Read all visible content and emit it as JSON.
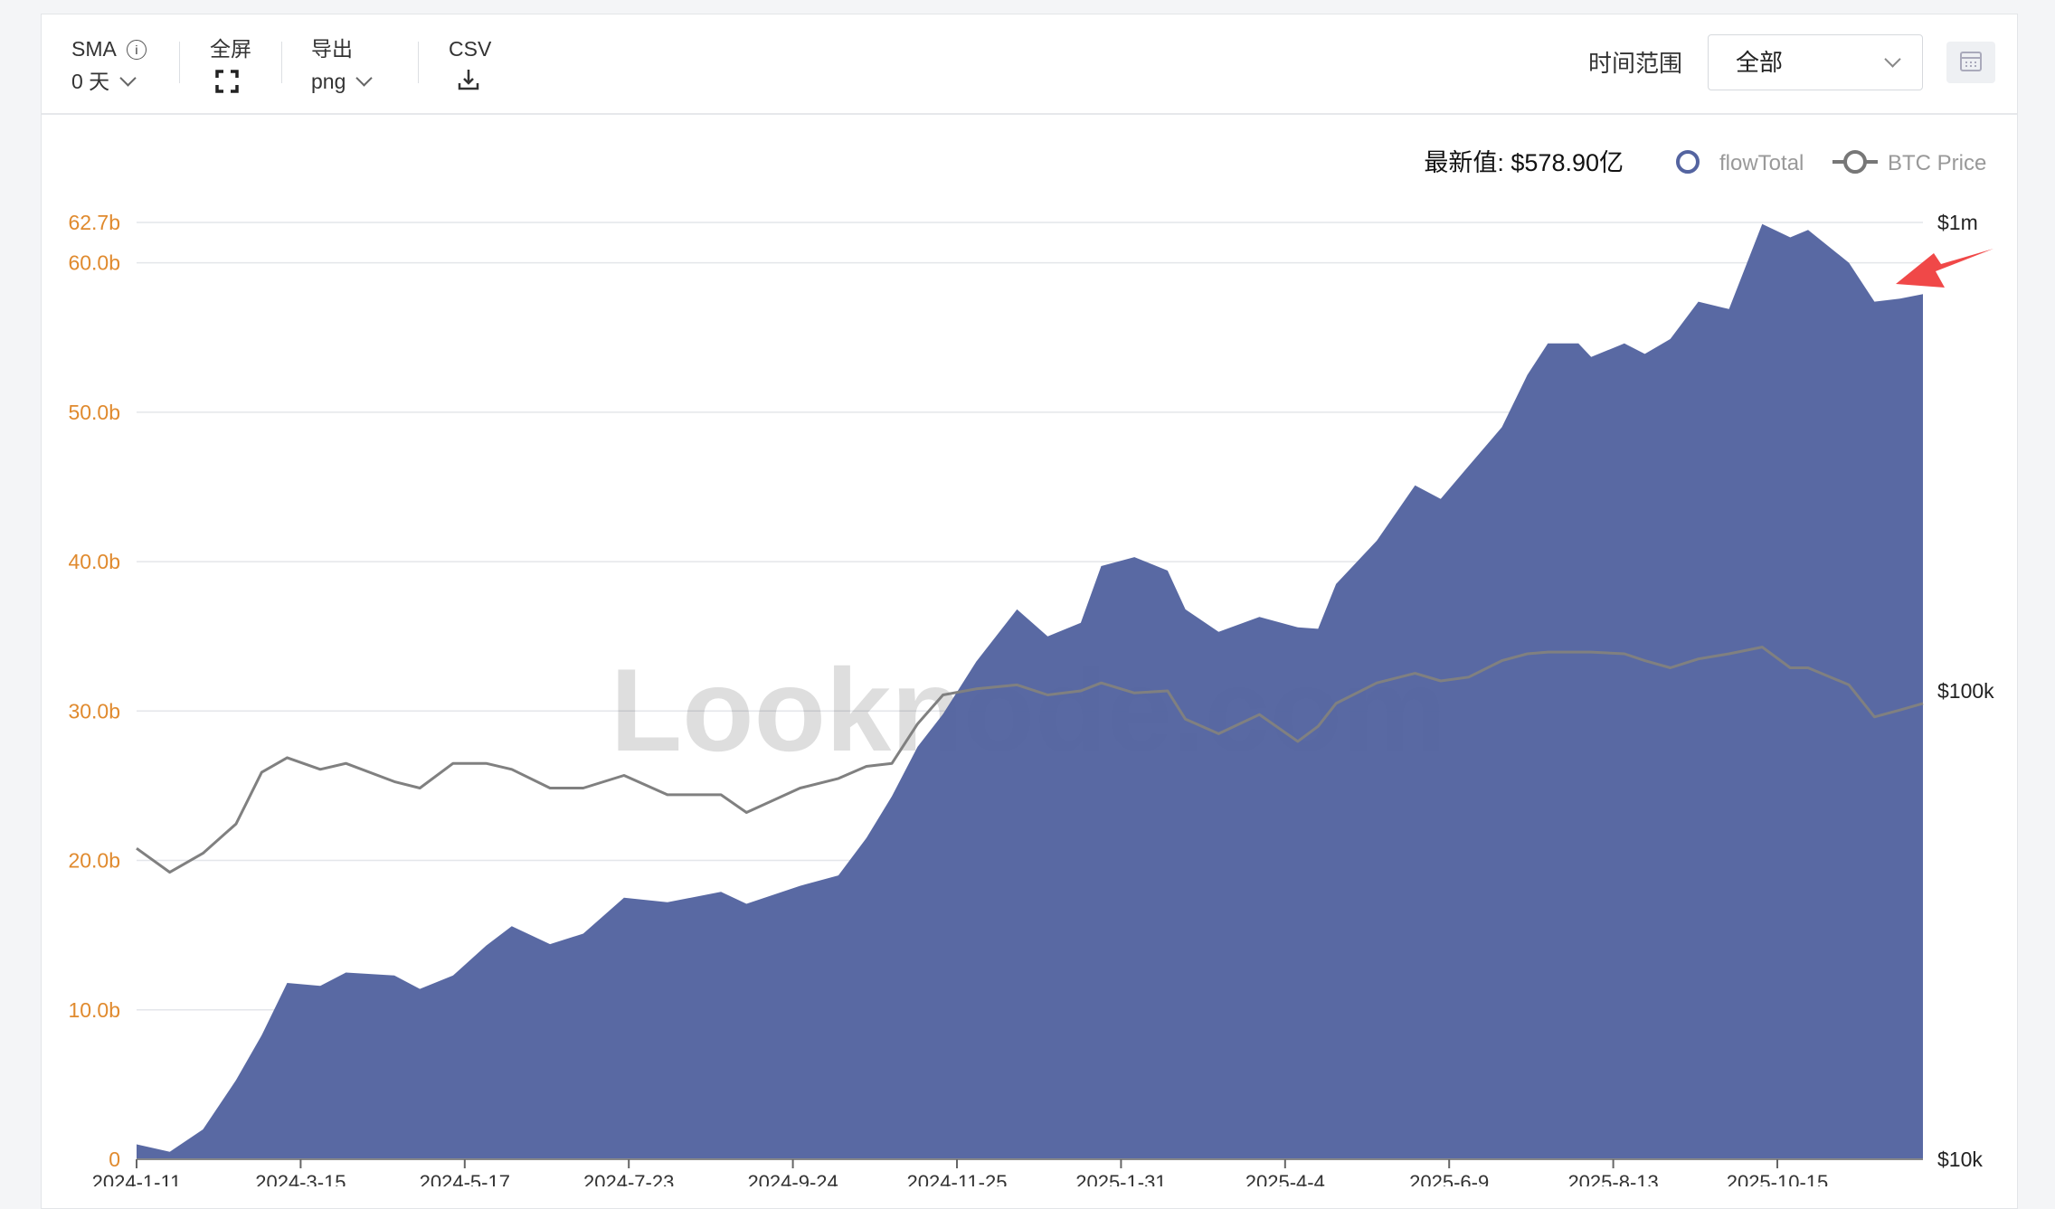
{
  "toolbar": {
    "sma_label": "SMA",
    "sma_value": "0 天",
    "fullscreen_label": "全屏",
    "export_label": "导出",
    "export_value": "png",
    "csv_label": "CSV",
    "time_range_label": "时间范围",
    "time_range_value": "全部"
  },
  "watermark": "Looknode.com",
  "colors": {
    "flow": "#5464a0",
    "btc": "#808080",
    "left_axis": "#e08a2e",
    "arrow": "#f04848"
  },
  "chart_data": {
    "type": "area",
    "latest_value_text": "最新值: $578.90亿",
    "legend": [
      "flowTotal",
      "BTC Price"
    ],
    "legend_placement": "top-right",
    "grid": true,
    "x_ticks": [
      "2024-1-11",
      "2024-3-15",
      "2024-5-17",
      "2024-7-23",
      "2024-9-24",
      "2024-11-25",
      "2025-1-31",
      "2025-4-4",
      "2025-6-9",
      "2025-8-13",
      "2025-10-15"
    ],
    "y_left": {
      "ticks": [
        0,
        10,
        20,
        30,
        40,
        50,
        60,
        62.7
      ],
      "labels": [
        "0",
        "10.0b",
        "20.0b",
        "30.0b",
        "40.0b",
        "50.0b",
        "60.0b",
        "62.7b"
      ],
      "range": [
        0,
        62.7
      ],
      "unit": "billion USD"
    },
    "y_right": {
      "scale": "log",
      "ticks": [
        10000,
        100000,
        1000000
      ],
      "labels": [
        "$10k",
        "$100k",
        "$1m"
      ],
      "range": [
        10000,
        1000000
      ]
    },
    "x": [
      "2024-01-11",
      "2024-01-24",
      "2024-02-06",
      "2024-02-19",
      "2024-02-29",
      "2024-03-10",
      "2024-03-23",
      "2024-04-02",
      "2024-04-21",
      "2024-05-01",
      "2024-05-14",
      "2024-05-27",
      "2024-06-06",
      "2024-06-21",
      "2024-07-04",
      "2024-07-20",
      "2024-08-06",
      "2024-08-27",
      "2024-09-06",
      "2024-09-27",
      "2024-10-12",
      "2024-10-23",
      "2024-11-02",
      "2024-11-12",
      "2024-11-22",
      "2024-12-05",
      "2024-12-21",
      "2025-01-02",
      "2025-01-15",
      "2025-01-23",
      "2025-02-05",
      "2025-02-18",
      "2025-02-25",
      "2025-03-10",
      "2025-03-26",
      "2025-04-10",
      "2025-04-18",
      "2025-04-25",
      "2025-05-11",
      "2025-05-26",
      "2025-06-05",
      "2025-06-16",
      "2025-06-29",
      "2025-07-09",
      "2025-07-17",
      "2025-07-29",
      "2025-08-03",
      "2025-08-16",
      "2025-08-24",
      "2025-09-03",
      "2025-09-14",
      "2025-09-26",
      "2025-10-09",
      "2025-10-20",
      "2025-10-27",
      "2025-11-12",
      "2025-11-22",
      "2025-12-02",
      "2025-12-11"
    ],
    "series": [
      {
        "name": "flowTotal",
        "axis": "left",
        "values": [
          1.0,
          0.5,
          2.0,
          5.3,
          8.3,
          11.8,
          11.6,
          12.5,
          12.3,
          11.4,
          12.3,
          14.3,
          15.6,
          14.4,
          15.1,
          17.5,
          17.2,
          17.9,
          17.1,
          18.3,
          19.0,
          21.5,
          24.3,
          27.6,
          29.8,
          33.3,
          36.8,
          35.0,
          35.9,
          39.7,
          40.3,
          39.4,
          36.8,
          35.3,
          36.3,
          35.6,
          35.5,
          38.5,
          41.4,
          45.1,
          44.2,
          46.4,
          49.0,
          52.5,
          54.6,
          54.6,
          53.7,
          54.6,
          53.9,
          54.9,
          57.4,
          56.9,
          62.6,
          61.7,
          62.2,
          60.0,
          57.4,
          57.6,
          57.9
        ]
      },
      {
        "name": "BTC Price",
        "axis": "right",
        "values": [
          46100,
          41000,
          45000,
          52000,
          67000,
          72000,
          68000,
          70000,
          64000,
          62000,
          70000,
          70000,
          68000,
          62000,
          62000,
          66000,
          60000,
          60000,
          55000,
          62000,
          65000,
          69000,
          70000,
          85000,
          98000,
          101000,
          103000,
          98000,
          100000,
          104000,
          99000,
          100000,
          87000,
          81000,
          89000,
          78000,
          84000,
          94000,
          104000,
          109000,
          105000,
          107000,
          116000,
          120000,
          121000,
          121000,
          121000,
          120000,
          116000,
          112000,
          117000,
          120000,
          124000,
          112000,
          112000,
          103000,
          88000,
          91000,
          94000
        ]
      }
    ]
  }
}
